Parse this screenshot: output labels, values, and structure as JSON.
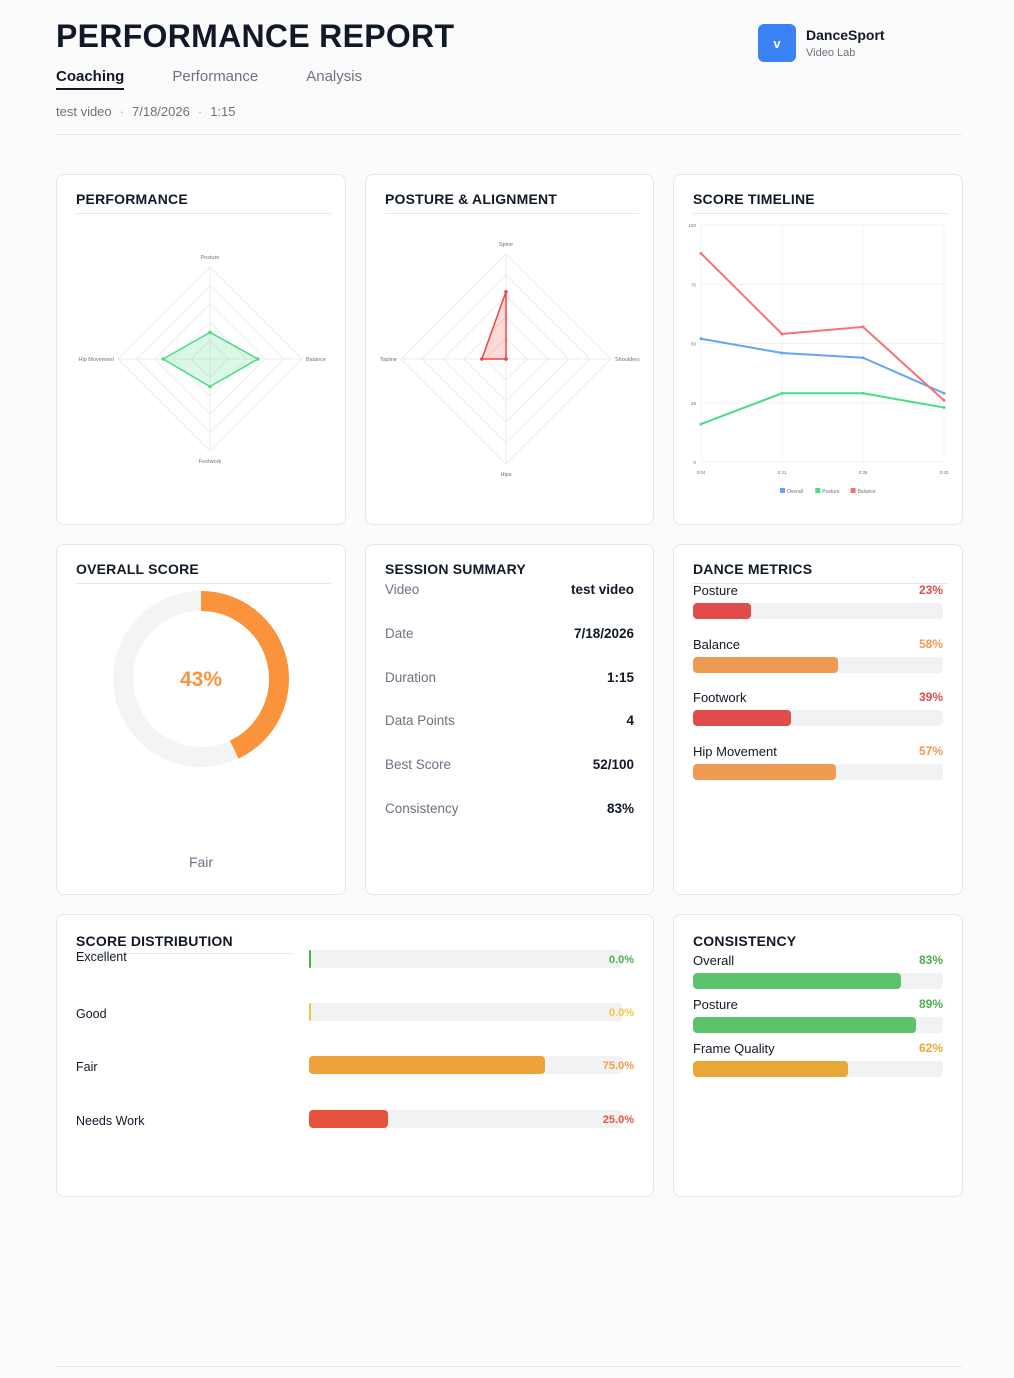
{
  "header": {
    "title": "PERFORMANCE REPORT",
    "tabs": [
      {
        "label": "Coaching",
        "active": true
      },
      {
        "label": "Performance",
        "active": false
      },
      {
        "label": "Analysis",
        "active": false
      }
    ],
    "meta": {
      "video": "test video",
      "date": "7/18/2026",
      "duration": "1:15",
      "separator": "·"
    }
  },
  "brand": {
    "logo_letter": "v",
    "name": "DanceSport",
    "sub": "Video Lab",
    "color": "#3b82f6"
  },
  "performance_card": {
    "title": "PERFORMANCE",
    "radar": {
      "axes": [
        "Posture",
        "Balance",
        "Footwork",
        "Hip Movement"
      ],
      "values": [
        29,
        52,
        30,
        51
      ],
      "max": 100,
      "color": "#4ade80"
    }
  },
  "posture_card": {
    "title": "POSTURE & ALIGNMENT",
    "radar": {
      "axes": [
        "Spine",
        "Shoulders",
        "Hips",
        "Topline"
      ],
      "values": [
        64,
        0,
        0,
        23
      ],
      "max": 100,
      "color": "#ef4444"
    }
  },
  "timeline_card": {
    "title": "SCORE TIMELINE",
    "chart_data": {
      "type": "line",
      "x": [
        "0:04",
        "0:21",
        "0:38",
        "0:43"
      ],
      "ylim": [
        0,
        100
      ],
      "yticks": [
        "0",
        "25",
        "50",
        "75",
        "100"
      ],
      "series": [
        {
          "name": "Overall",
          "values": [
            52,
            46,
            44,
            29
          ],
          "color": "#60a5fa"
        },
        {
          "name": "Posture",
          "values": [
            16,
            29,
            29,
            23
          ],
          "color": "#4ade80"
        },
        {
          "name": "Balance",
          "values": [
            88,
            54,
            57,
            26
          ],
          "color": "#f87171"
        }
      ],
      "legend": "bottom"
    }
  },
  "overall_card": {
    "title": "OVERALL SCORE",
    "score": 43,
    "score_label": "43%",
    "rating": "Fair",
    "color": "#fb923c"
  },
  "summary_card": {
    "title": "SESSION SUMMARY",
    "rows": [
      {
        "label": "Video",
        "value": "test video"
      },
      {
        "label": "Date",
        "value": "7/18/2026"
      },
      {
        "label": "Duration",
        "value": "1:15"
      },
      {
        "label": "Data Points",
        "value": "4"
      },
      {
        "label": "Best Score",
        "value": "52/100"
      },
      {
        "label": "Consistency",
        "value": "83%"
      }
    ]
  },
  "metrics_card": {
    "title": "DANCE METRICS",
    "items": [
      {
        "label": "Posture",
        "pct": "23%",
        "value": 23,
        "color": "#e04b4b",
        "text_color": "#e04b4b"
      },
      {
        "label": "Balance",
        "pct": "58%",
        "value": 58,
        "color": "#ef9a52",
        "text_color": "#ef9a52"
      },
      {
        "label": "Footwork",
        "pct": "39%",
        "value": 39,
        "color": "#e04b4b",
        "text_color": "#e04b4b"
      },
      {
        "label": "Hip Movement",
        "pct": "57%",
        "value": 57,
        "color": "#ef9a52",
        "text_color": "#ef9a52"
      }
    ]
  },
  "distribution_card": {
    "title": "SCORE DISTRIBUTION",
    "items": [
      {
        "label": "Excellent",
        "pct": "0.0%",
        "value": 0,
        "color": "#4caf50"
      },
      {
        "label": "Good",
        "pct": "0.0%",
        "value": 0,
        "color": "#f4c542"
      },
      {
        "label": "Fair",
        "pct": "75.0%",
        "value": 75,
        "color": "#f0a13a"
      },
      {
        "label": "Needs Work",
        "pct": "25.0%",
        "value": 25,
        "color": "#e5533d"
      }
    ]
  },
  "consistency_card": {
    "title": "CONSISTENCY",
    "items": [
      {
        "label": "Overall",
        "pct": "83%",
        "value": 83,
        "color": "#5cc26b",
        "text_color": "#4caf50"
      },
      {
        "label": "Posture",
        "pct": "89%",
        "value": 89,
        "color": "#5cc26b",
        "text_color": "#4caf50"
      },
      {
        "label": "Frame Quality",
        "pct": "62%",
        "value": 62,
        "color": "#e8a838",
        "text_color": "#e8a838"
      }
    ]
  }
}
